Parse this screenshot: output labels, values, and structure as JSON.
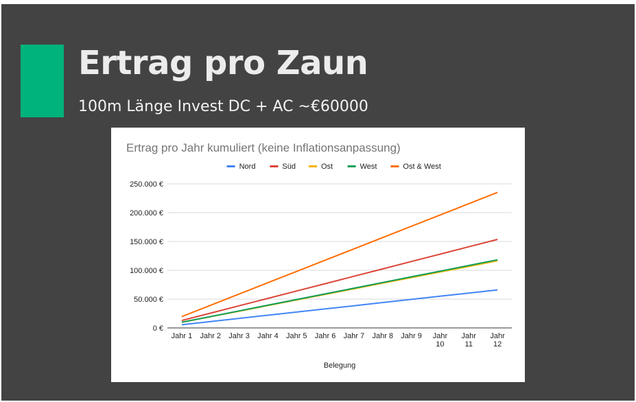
{
  "slide": {
    "title": "Ertrag pro Zaun",
    "subtitle": "100m Länge Invest DC + AC ~€60000",
    "accent_color": "#00b27b",
    "background_color": "#434343"
  },
  "chart_data": {
    "type": "line",
    "title": "Ertrag pro Jahr kumuliert (keine Inflationsanpassung)",
    "xlabel": "Belegung",
    "ylabel": "",
    "categories": [
      "Jahr 1",
      "Jahr 2",
      "Jahr 3",
      "Jahr 4",
      "Jahr 5",
      "Jahr 6",
      "Jahr 7",
      "Jahr 8",
      "Jahr 9",
      "Jahr 10",
      "Jahr 11",
      "Jahr 12"
    ],
    "y_ticks": [
      "0 €",
      "50.000 €",
      "100.000 €",
      "150.000 €",
      "200.000 €",
      "250.000 €"
    ],
    "ylim": [
      0,
      250000
    ],
    "grid": true,
    "legend_position": "top",
    "series": [
      {
        "name": "Nord",
        "color": "#4285f4",
        "values": [
          5500,
          11000,
          16500,
          22000,
          27500,
          33000,
          38500,
          44000,
          49500,
          55000,
          60500,
          66000
        ]
      },
      {
        "name": "Süd",
        "color": "#db4437",
        "values": [
          12800,
          25600,
          38400,
          51200,
          64000,
          76800,
          89600,
          102400,
          115200,
          128000,
          140800,
          153600
        ]
      },
      {
        "name": "Ost",
        "color": "#f4b400",
        "values": [
          9700,
          19400,
          29100,
          38800,
          48500,
          58200,
          67900,
          77600,
          87300,
          97000,
          106700,
          116400
        ]
      },
      {
        "name": "West",
        "color": "#0f9d58",
        "values": [
          9850,
          19700,
          29550,
          39400,
          49250,
          59100,
          68950,
          78800,
          88650,
          98500,
          108350,
          118200
        ]
      },
      {
        "name": "Ost & West",
        "color": "#ff6d01",
        "values": [
          19600,
          39200,
          58800,
          78400,
          98000,
          117600,
          137200,
          156800,
          176400,
          196000,
          215600,
          235200
        ]
      }
    ]
  }
}
